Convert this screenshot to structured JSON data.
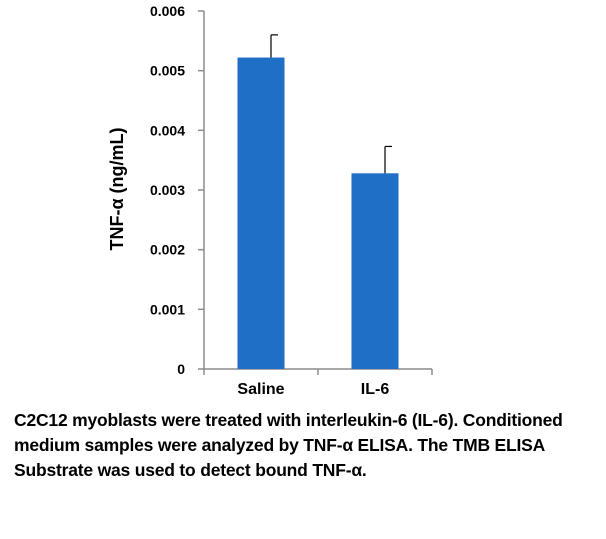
{
  "chart_data": {
    "type": "bar",
    "categories": [
      "Saline",
      "IL-6"
    ],
    "values": [
      0.00522,
      0.00328
    ],
    "error": [
      0.00038,
      0.00045
    ],
    "ylabel": "TNF-α (ng/mL)",
    "xlabel": "",
    "ylim": [
      0,
      0.006
    ],
    "yticks": [
      "0",
      "0.001",
      "0.002",
      "0.003",
      "0.004",
      "0.005",
      "0.006"
    ],
    "bar_color": "#1f6fc6",
    "grid": false,
    "legend": "none"
  },
  "caption": "C2C12 myoblasts were treated with interleukin-6 (IL-6). Conditioned medium samples were analyzed by TNF-α ELISA. The TMB ELISA Substrate was used to detect bound TNF-α."
}
